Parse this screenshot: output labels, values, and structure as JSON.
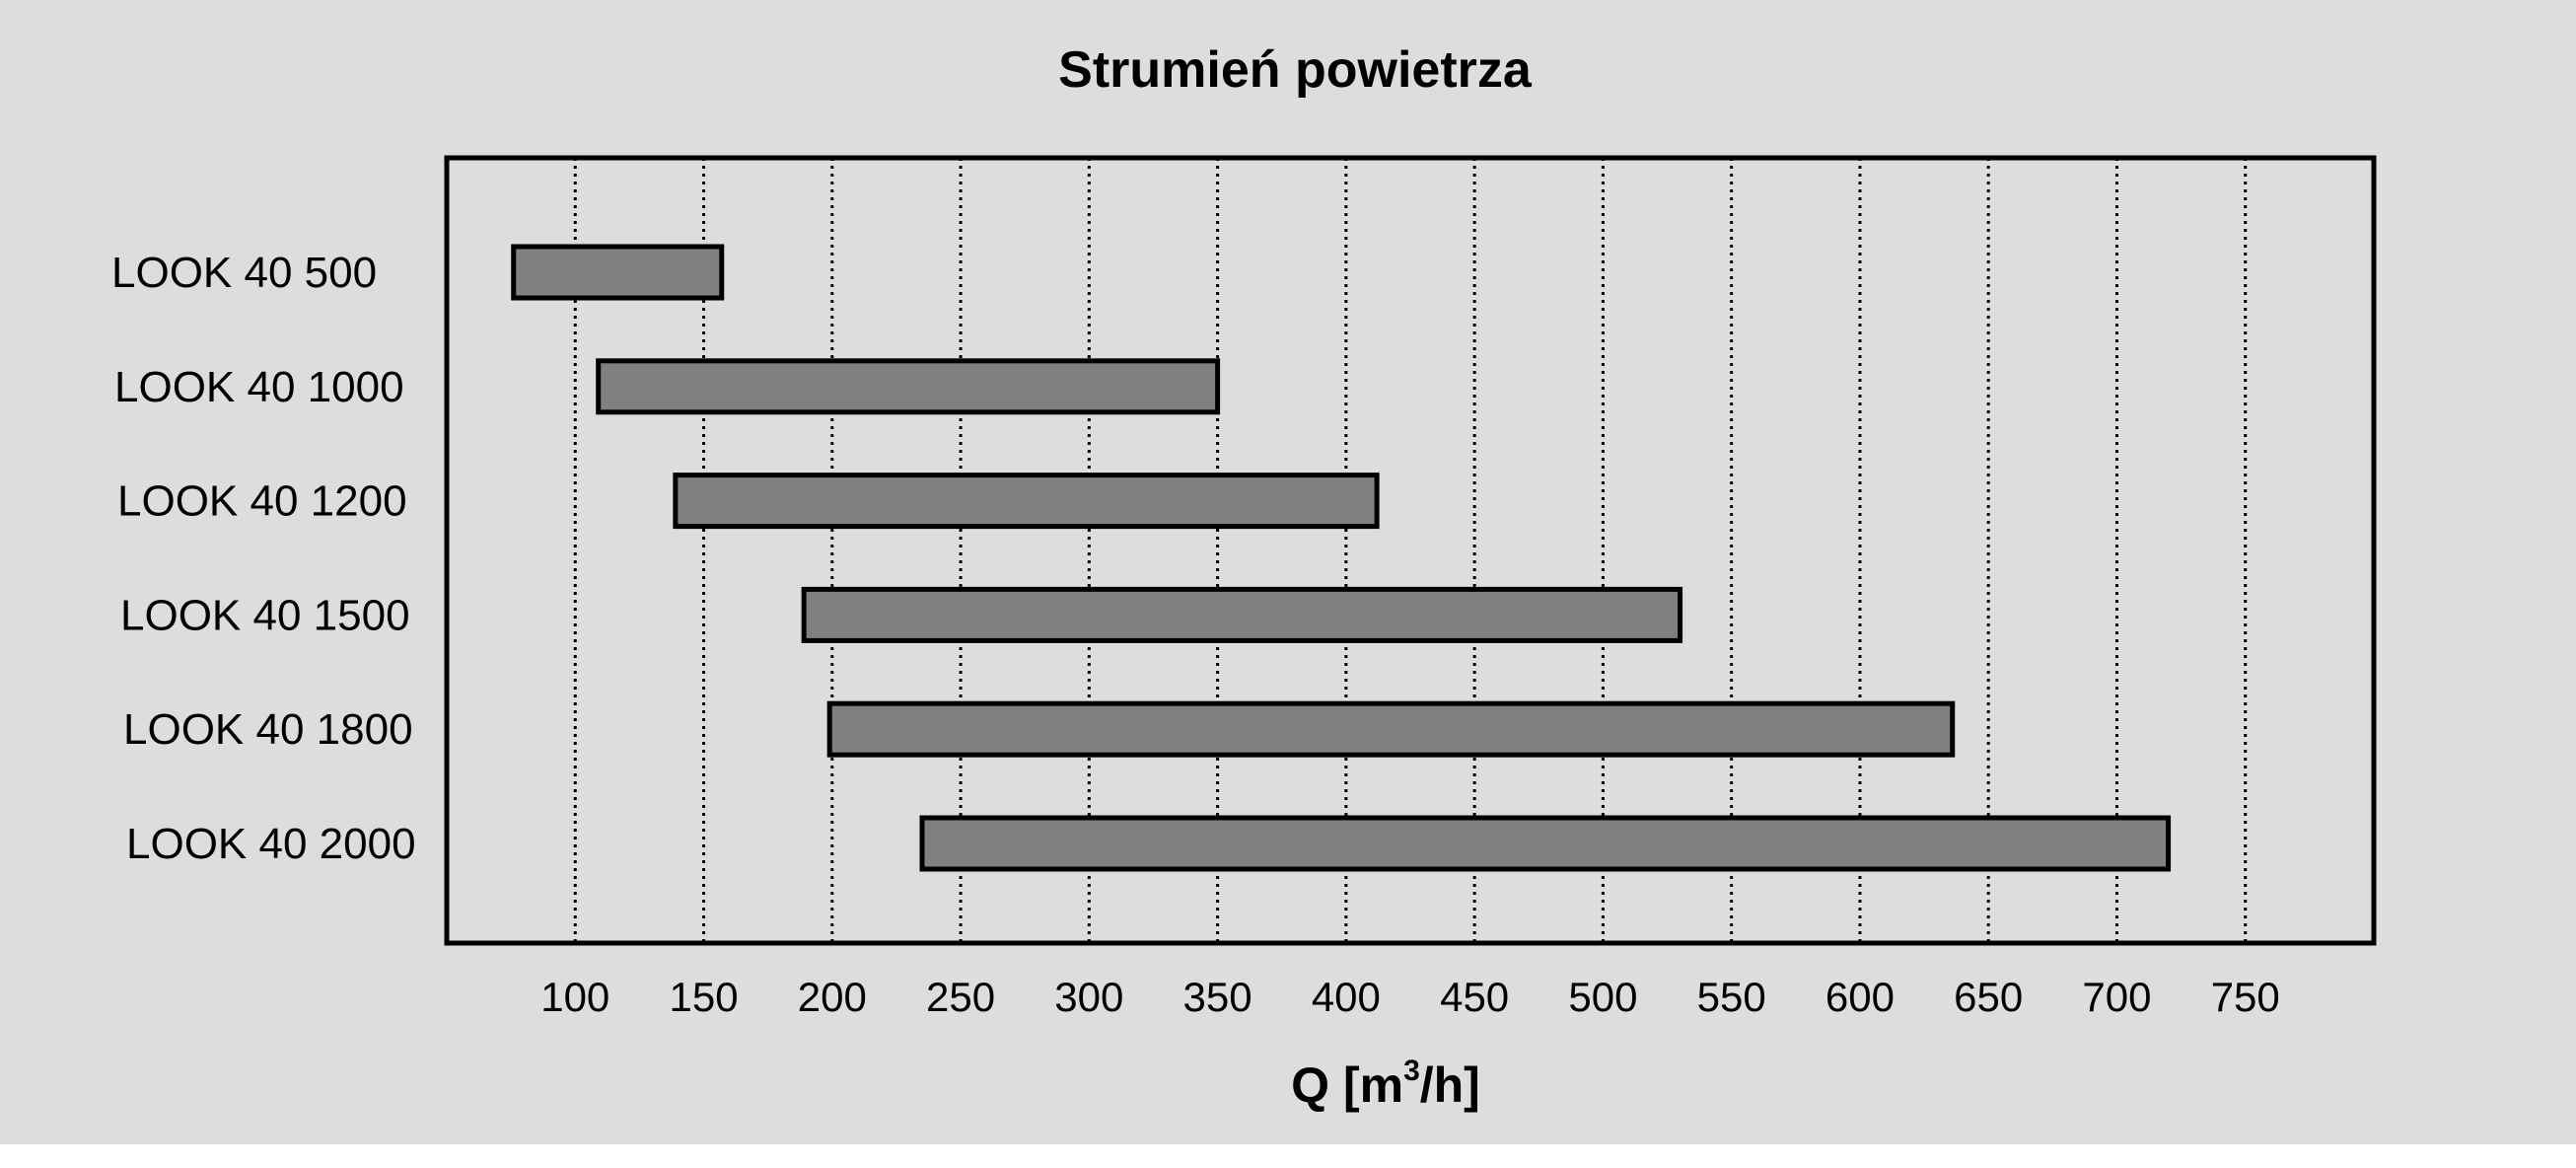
{
  "chart_data": {
    "type": "bar",
    "orientation": "horizontal",
    "subtype": "floating-range",
    "title": "Strumień powietrza",
    "xlabel": "Q [m3/h]",
    "xlabel_parts": {
      "main": "Q [m",
      "superscript": "3",
      "tail": "/h]"
    },
    "ylabel": "",
    "xlim": [
      50,
      800
    ],
    "xticks": [
      100,
      150,
      200,
      250,
      300,
      350,
      400,
      450,
      500,
      550,
      600,
      650,
      700,
      750
    ],
    "grid": {
      "vertical": true,
      "style": "dotted"
    },
    "bar_color": "#808080",
    "categories": [
      "LOOK 40 500",
      "LOOK 40 1000",
      "LOOK 40 1200",
      "LOOK 40 1500",
      "LOOK 40 1800",
      "LOOK 40 2000"
    ],
    "series": [
      {
        "ranges": [
          [
            76,
            157
          ],
          [
            109,
            350
          ],
          [
            139,
            412
          ],
          [
            189,
            530
          ],
          [
            199,
            636
          ],
          [
            235,
            720
          ]
        ]
      }
    ]
  }
}
